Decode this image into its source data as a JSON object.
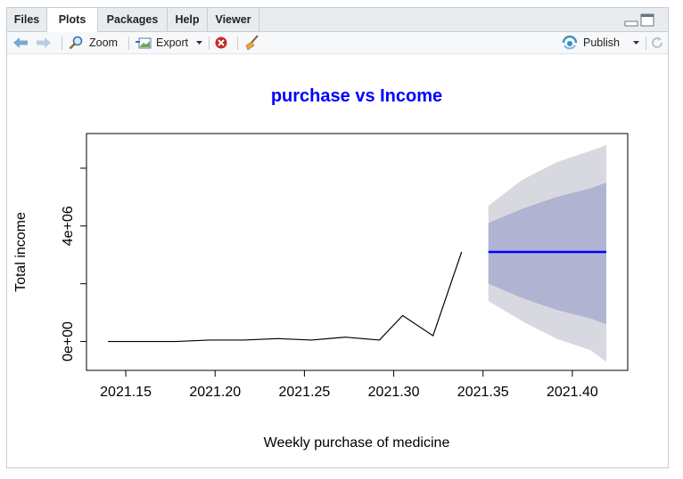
{
  "tabs": [
    "Files",
    "Plots",
    "Packages",
    "Help",
    "Viewer"
  ],
  "active_tab": "Plots",
  "toolbar": {
    "zoom_label": "Zoom",
    "export_label": "Export",
    "publish_label": "Publish"
  },
  "colors": {
    "title": "#0000ff",
    "forecast_line": "#0000ff",
    "band_80": "#b0b4d2",
    "band_95": "#d8d9e0",
    "series": "#000000"
  },
  "chart_data": {
    "type": "line",
    "title": "purchase vs Income",
    "xlabel": "Weekly purchase of medicine",
    "ylabel": "Total income",
    "xlim": [
      2021.128,
      2021.431
    ],
    "ylim": [
      -1000000,
      7200000
    ],
    "x_ticks": [
      2021.15,
      2021.2,
      2021.25,
      2021.3,
      2021.35,
      2021.4
    ],
    "x_tick_labels": [
      "2021.15",
      "2021.20",
      "2021.25",
      "2021.30",
      "2021.35",
      "2021.40"
    ],
    "y_ticks": [
      0,
      2000000,
      4000000,
      6000000
    ],
    "y_tick_labels": [
      "0e+00",
      "",
      "4e+06",
      ""
    ],
    "grid": false,
    "series": [
      {
        "x": [
          2021.14,
          2021.159,
          2021.178,
          2021.197,
          2021.216,
          2021.235,
          2021.254,
          2021.273,
          2021.292,
          2021.305,
          2021.322,
          2021.338
        ],
        "values": [
          0,
          0,
          0,
          50000,
          50000,
          100000,
          50000,
          150000,
          50000,
          900000,
          200000,
          3100000
        ]
      }
    ],
    "forecast": {
      "x": [
        2021.353,
        2021.372,
        2021.391,
        2021.41,
        2021.419
      ],
      "mean": [
        3100000,
        3100000,
        3100000,
        3100000,
        3100000
      ],
      "lo80": [
        2000000,
        1500000,
        1100000,
        800000,
        600000
      ],
      "hi80": [
        4100000,
        4600000,
        5000000,
        5300000,
        5500000
      ],
      "lo95": [
        1400000,
        700000,
        100000,
        -300000,
        -700000
      ],
      "hi95": [
        4700000,
        5600000,
        6200000,
        6600000,
        6800000
      ]
    }
  }
}
